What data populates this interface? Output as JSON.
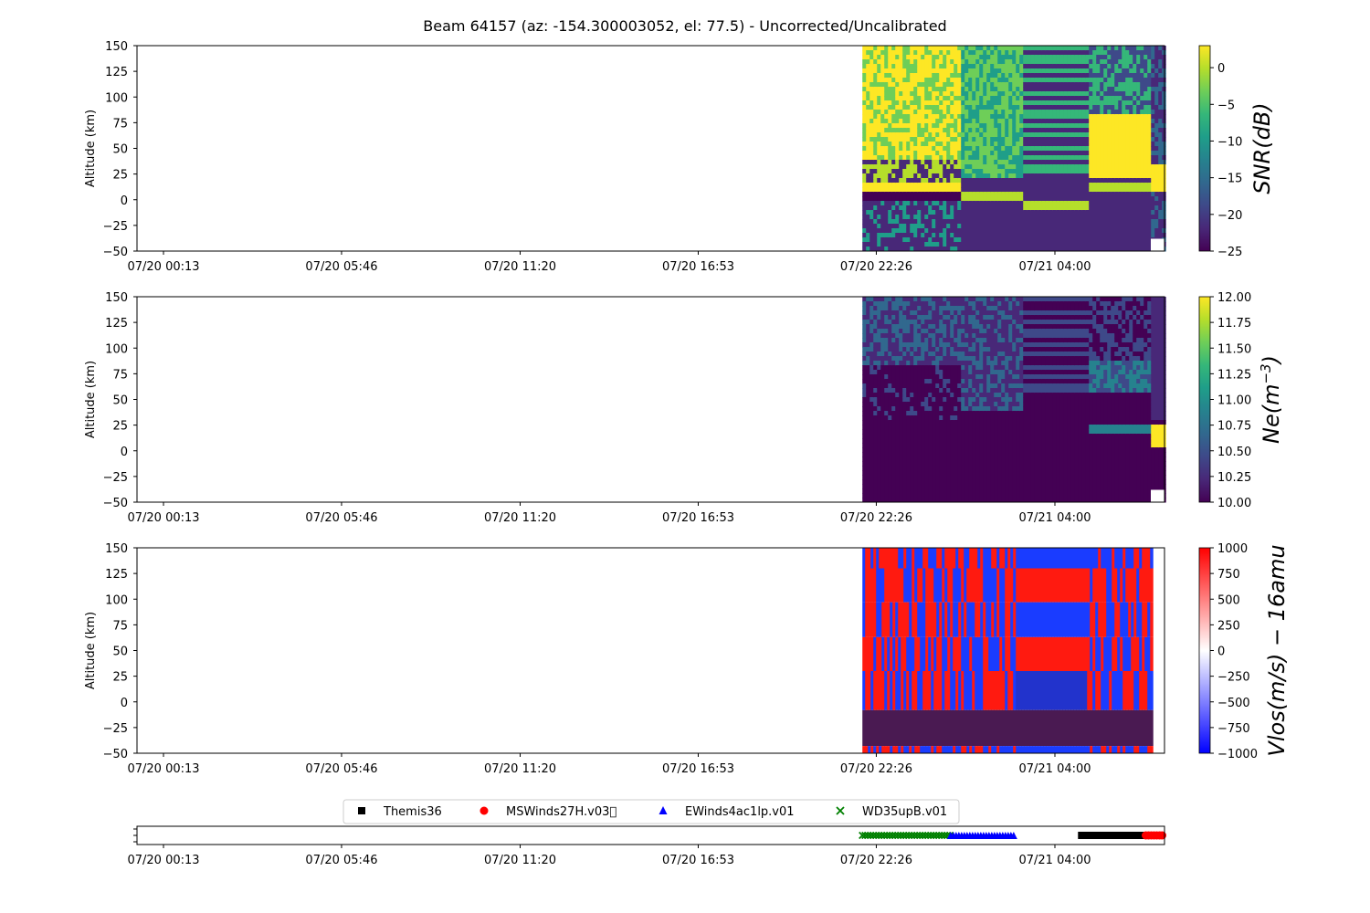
{
  "title": "Beam 64157 (az: -154.300003052, el: 77.5) - Uncorrected/Uncalibrated",
  "colors": {
    "viridis": [
      "#440154",
      "#482878",
      "#3e4989",
      "#31688e",
      "#26828e",
      "#1f9e89",
      "#35b779",
      "#6ece58",
      "#b5de2b",
      "#fde725"
    ],
    "bwr": [
      "#0000ff",
      "#ffffff",
      "#ff0000"
    ],
    "vlos_field": "#4a1a52",
    "vlos_red": "#ff1a10",
    "vlos_blue": "#1a3cff"
  },
  "chart_data": [
    {
      "type": "heatmap",
      "name": "snr",
      "ylabel": "Altitude (km)",
      "ylim": [
        -50,
        150
      ],
      "yticks": [
        "150",
        "125",
        "100",
        "75",
        "50",
        "25",
        "0",
        "−25",
        "−50"
      ],
      "xtick_labels": [
        "07/20 00:13",
        "07/20 05:46",
        "07/20 11:20",
        "07/20 16:53",
        "07/20 22:26",
        "07/21 04:00"
      ],
      "data_extent_x": [
        "07/20 22:00",
        "07/21 06:20"
      ],
      "colorbar": {
        "label": "SNR(dB)",
        "colormap": "viridis",
        "range": [
          -25,
          3
        ],
        "ticks": [
          "0",
          "−5",
          "−10",
          "−15",
          "−20",
          "−25"
        ],
        "tick_values": [
          0,
          -5,
          -10,
          -15,
          -20,
          -25
        ]
      }
    },
    {
      "type": "heatmap",
      "name": "ne",
      "ylabel": "Altitude (km)",
      "ylim": [
        -50,
        150
      ],
      "yticks": [
        "150",
        "125",
        "100",
        "75",
        "50",
        "25",
        "0",
        "−25",
        "−50"
      ],
      "xtick_labels": [
        "07/20 00:13",
        "07/20 05:46",
        "07/20 11:20",
        "07/20 16:53",
        "07/20 22:26",
        "07/21 04:00"
      ],
      "data_extent_x": [
        "07/20 22:00",
        "07/21 06:20"
      ],
      "colorbar": {
        "label": "Ne(m^-3)",
        "colormap": "viridis",
        "range": [
          10,
          12
        ],
        "ticks": [
          "12.00",
          "11.75",
          "11.50",
          "11.25",
          "11.00",
          "10.75",
          "10.50",
          "10.25",
          "10.00"
        ],
        "tick_values": [
          12,
          11.75,
          11.5,
          11.25,
          11,
          10.75,
          10.5,
          10.25,
          10
        ]
      }
    },
    {
      "type": "heatmap",
      "name": "vlos",
      "ylabel": "Altitude (km)",
      "ylim": [
        -50,
        150
      ],
      "yticks": [
        "150",
        "125",
        "100",
        "75",
        "50",
        "25",
        "0",
        "−25",
        "−50"
      ],
      "xtick_labels": [
        "07/20 00:13",
        "07/20 05:46",
        "07/20 11:20",
        "07/20 16:53",
        "07/20 22:26",
        "07/21 04:00"
      ],
      "data_extent_x": [
        "07/20 22:00",
        "07/21 06:20"
      ],
      "colorbar": {
        "label": "Vlos(m/s) − 16amu",
        "colormap": "bwr",
        "range": [
          -1000,
          1000
        ],
        "ticks": [
          "1000",
          "750",
          "500",
          "250",
          "0",
          "−250",
          "−500",
          "−750",
          "−1000"
        ],
        "tick_values": [
          1000,
          750,
          500,
          250,
          0,
          -250,
          -500,
          -750,
          -1000
        ]
      }
    },
    {
      "type": "scatter",
      "name": "mode_timeline",
      "xtick_labels": [
        "07/20 00:13",
        "07/20 05:46",
        "07/20 11:20",
        "07/20 16:53",
        "07/20 22:26",
        "07/21 04:00"
      ],
      "legend": [
        {
          "label": "Themis36",
          "marker": "square",
          "color": "#000000"
        },
        {
          "label": "MSWinds27H.v03\u0000",
          "marker": "circle",
          "color": "#ff0000"
        },
        {
          "label": "EWinds4ac1lp.v01",
          "marker": "triangle",
          "color": "#0000ff"
        },
        {
          "label": "WD35upB.v01",
          "marker": "x",
          "color": "#008000"
        }
      ],
      "legend_placement": "top-center",
      "series": [
        {
          "name": "WD35upB.v01",
          "from": "07/20 22:00",
          "to": "07/21 00:45"
        },
        {
          "name": "EWinds4ac1lp.v01",
          "from": "07/21 00:45",
          "to": "07/21 02:45"
        },
        {
          "name": "Themis36",
          "from": "07/21 04:50",
          "to": "07/21 06:50"
        },
        {
          "name": "MSWinds27H.v03\u0000",
          "from": "07/21 06:50",
          "to": "07/21 07:30"
        }
      ]
    }
  ]
}
